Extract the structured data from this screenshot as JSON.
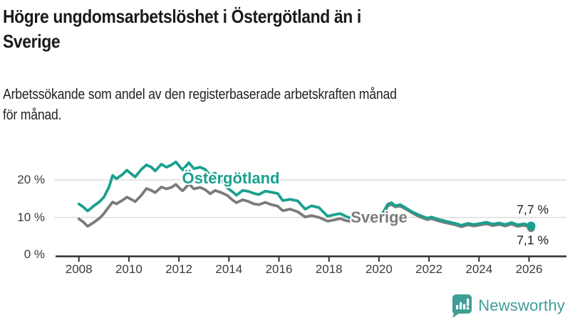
{
  "header": {
    "title_lines": [
      "Högre ungdomsarbetslöshet i Östergötland än i",
      "Sverige"
    ],
    "subtitle_lines": [
      "Arbetssökande som andel av den registerbaserade arbetskraften månad",
      "för månad."
    ]
  },
  "chart_data": {
    "type": "line",
    "title": "Högre ungdomsarbetslöshet i Östergötland än i Sverige",
    "subtitle": "Arbetssökande som andel av den registerbaserade arbetskraften månad för månad.",
    "unit": "%",
    "xlim": [
      2008,
      2026.5
    ],
    "ylim": [
      0,
      27
    ],
    "grid": "horizontal",
    "x_ticks": [
      2008,
      2010,
      2012,
      2014,
      2016,
      2018,
      2020,
      2022,
      2024,
      2026
    ],
    "y_ticks": [
      {
        "value": 0,
        "label": "0 %"
      },
      {
        "value": 10,
        "label": "10 %"
      },
      {
        "value": 20,
        "label": "20 %"
      }
    ],
    "colors": {
      "ostergotland": "#1aa08e",
      "sverige": "#7b7b7b",
      "grid": "#dcdcdc",
      "axis": "#2f2f2f"
    },
    "series": [
      {
        "name": "Sverige",
        "color": "#7b7b7b",
        "label_pos": {
          "x": 532,
          "y": 306
        },
        "end_value": 7.1,
        "points": [
          [
            2008.0,
            9.6
          ],
          [
            2008.17,
            8.8
          ],
          [
            2008.35,
            7.6
          ],
          [
            2008.6,
            8.7
          ],
          [
            2008.83,
            9.8
          ],
          [
            2009.0,
            11.0
          ],
          [
            2009.2,
            12.8
          ],
          [
            2009.35,
            14.1
          ],
          [
            2009.5,
            13.6
          ],
          [
            2009.75,
            14.6
          ],
          [
            2009.92,
            15.4
          ],
          [
            2010.1,
            14.8
          ],
          [
            2010.25,
            14.2
          ],
          [
            2010.5,
            15.9
          ],
          [
            2010.7,
            17.7
          ],
          [
            2010.9,
            17.2
          ],
          [
            2011.05,
            16.6
          ],
          [
            2011.3,
            18.1
          ],
          [
            2011.5,
            17.6
          ],
          [
            2011.7,
            18.0
          ],
          [
            2011.88,
            18.8
          ],
          [
            2012.05,
            17.6
          ],
          [
            2012.15,
            17.1
          ],
          [
            2012.4,
            18.9
          ],
          [
            2012.6,
            17.6
          ],
          [
            2012.85,
            18.0
          ],
          [
            2013.05,
            17.4
          ],
          [
            2013.25,
            16.3
          ],
          [
            2013.45,
            17.2
          ],
          [
            2013.7,
            16.6
          ],
          [
            2013.95,
            15.8
          ],
          [
            2014.15,
            14.6
          ],
          [
            2014.3,
            13.9
          ],
          [
            2014.55,
            14.7
          ],
          [
            2014.8,
            14.2
          ],
          [
            2015.0,
            13.6
          ],
          [
            2015.2,
            13.4
          ],
          [
            2015.45,
            14.0
          ],
          [
            2015.7,
            13.4
          ],
          [
            2015.95,
            13.0
          ],
          [
            2016.15,
            11.8
          ],
          [
            2016.45,
            12.2
          ],
          [
            2016.75,
            11.5
          ],
          [
            2017.05,
            10.1
          ],
          [
            2017.3,
            10.5
          ],
          [
            2017.6,
            10.0
          ],
          [
            2017.95,
            9.0
          ],
          [
            2018.2,
            9.3
          ],
          [
            2018.45,
            9.7
          ],
          [
            2018.7,
            9.1
          ],
          [
            2018.95,
            8.8
          ],
          [
            2019.2,
            9.3
          ],
          [
            2019.45,
            9.1
          ],
          [
            2019.7,
            8.9
          ],
          [
            2019.95,
            9.7
          ],
          [
            2020.15,
            10.8
          ],
          [
            2020.35,
            13.0
          ],
          [
            2020.5,
            13.5
          ],
          [
            2020.65,
            12.8
          ],
          [
            2020.85,
            13.0
          ],
          [
            2021.05,
            12.3
          ],
          [
            2021.3,
            11.3
          ],
          [
            2021.55,
            10.4
          ],
          [
            2021.8,
            9.7
          ],
          [
            2021.95,
            9.4
          ],
          [
            2022.1,
            9.7
          ],
          [
            2022.35,
            9.1
          ],
          [
            2022.6,
            8.7
          ],
          [
            2022.85,
            8.3
          ],
          [
            2023.05,
            8.0
          ],
          [
            2023.3,
            7.5
          ],
          [
            2023.55,
            8.0
          ],
          [
            2023.8,
            7.7
          ],
          [
            2024.05,
            8.0
          ],
          [
            2024.3,
            8.3
          ],
          [
            2024.55,
            7.8
          ],
          [
            2024.8,
            8.1
          ],
          [
            2025.05,
            7.7
          ],
          [
            2025.3,
            8.2
          ],
          [
            2025.55,
            7.6
          ],
          [
            2025.8,
            7.9
          ],
          [
            2026.0,
            7.4
          ],
          [
            2026.08,
            7.1
          ]
        ]
      },
      {
        "name": "Östergötland",
        "color": "#1aa08e",
        "label_pos": {
          "x": 324,
          "y": 251
        },
        "end_value": 7.7,
        "points": [
          [
            2008.0,
            13.6
          ],
          [
            2008.17,
            12.8
          ],
          [
            2008.35,
            11.7
          ],
          [
            2008.6,
            13.1
          ],
          [
            2008.83,
            14.2
          ],
          [
            2009.0,
            15.4
          ],
          [
            2009.2,
            18.0
          ],
          [
            2009.35,
            21.2
          ],
          [
            2009.5,
            20.3
          ],
          [
            2009.75,
            21.5
          ],
          [
            2009.92,
            22.6
          ],
          [
            2010.1,
            21.6
          ],
          [
            2010.25,
            20.8
          ],
          [
            2010.5,
            22.8
          ],
          [
            2010.7,
            24.0
          ],
          [
            2010.9,
            23.4
          ],
          [
            2011.05,
            22.4
          ],
          [
            2011.3,
            24.2
          ],
          [
            2011.5,
            23.4
          ],
          [
            2011.7,
            24.0
          ],
          [
            2011.88,
            24.8
          ],
          [
            2012.05,
            23.4
          ],
          [
            2012.15,
            22.7
          ],
          [
            2012.4,
            24.6
          ],
          [
            2012.6,
            23.0
          ],
          [
            2012.85,
            23.4
          ],
          [
            2013.05,
            22.8
          ],
          [
            2013.25,
            21.2
          ],
          [
            2013.45,
            21.8
          ],
          [
            2013.7,
            20.0
          ],
          [
            2013.95,
            17.8
          ],
          [
            2014.15,
            16.8
          ],
          [
            2014.3,
            15.9
          ],
          [
            2014.55,
            17.2
          ],
          [
            2014.8,
            16.9
          ],
          [
            2015.0,
            16.4
          ],
          [
            2015.2,
            16.1
          ],
          [
            2015.45,
            17.0
          ],
          [
            2015.7,
            16.7
          ],
          [
            2015.95,
            16.4
          ],
          [
            2016.15,
            14.5
          ],
          [
            2016.45,
            14.8
          ],
          [
            2016.75,
            14.4
          ],
          [
            2017.05,
            12.2
          ],
          [
            2017.3,
            13.1
          ],
          [
            2017.6,
            12.6
          ],
          [
            2017.95,
            10.3
          ],
          [
            2018.2,
            10.7
          ],
          [
            2018.45,
            11.0
          ],
          [
            2018.7,
            10.2
          ],
          [
            2018.95,
            9.6
          ],
          [
            2019.2,
            10.1
          ],
          [
            2019.45,
            9.9
          ],
          [
            2019.7,
            9.5
          ],
          [
            2019.95,
            10.0
          ],
          [
            2020.15,
            11.2
          ],
          [
            2020.35,
            13.5
          ],
          [
            2020.5,
            13.9
          ],
          [
            2020.65,
            13.1
          ],
          [
            2020.85,
            13.4
          ],
          [
            2021.05,
            12.6
          ],
          [
            2021.3,
            11.6
          ],
          [
            2021.55,
            10.8
          ],
          [
            2021.8,
            10.1
          ],
          [
            2021.95,
            9.8
          ],
          [
            2022.1,
            10.1
          ],
          [
            2022.35,
            9.5
          ],
          [
            2022.6,
            9.1
          ],
          [
            2022.85,
            8.7
          ],
          [
            2023.05,
            8.4
          ],
          [
            2023.3,
            7.9
          ],
          [
            2023.55,
            8.4
          ],
          [
            2023.8,
            8.1
          ],
          [
            2024.05,
            8.4
          ],
          [
            2024.3,
            8.7
          ],
          [
            2024.55,
            8.2
          ],
          [
            2024.8,
            8.5
          ],
          [
            2025.05,
            8.1
          ],
          [
            2025.3,
            8.6
          ],
          [
            2025.55,
            8.0
          ],
          [
            2025.8,
            8.3
          ],
          [
            2026.0,
            7.9
          ],
          [
            2026.08,
            7.7
          ]
        ]
      }
    ],
    "end_labels": [
      {
        "text": "7,7 %",
        "x": 770,
        "y": 295
      },
      {
        "text": "7,1 %",
        "x": 770,
        "y": 338
      }
    ],
    "legend_position": "inline-labels"
  },
  "branding": {
    "logo_text": "Newsworthy",
    "color": "#3f9e96"
  }
}
